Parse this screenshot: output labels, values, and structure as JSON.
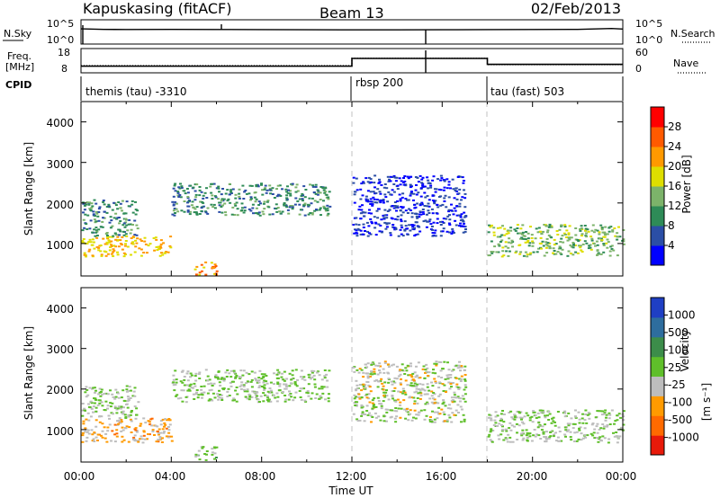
{
  "header": {
    "radar": "Kapuskasing (fitACF)",
    "beam": "Beam 13",
    "date": "02/Feb/2013"
  },
  "noise_panel": {
    "left_label": "N.Sky",
    "right_label": "N.Search",
    "left_ticks": [
      "10^5",
      "10^0"
    ],
    "right_ticks": [
      "10^5",
      "10^0"
    ]
  },
  "freq_panel": {
    "left_label_1": "Freq.",
    "left_label_2": "[MHz]",
    "right_label": "Nave",
    "left_ticks": [
      "18",
      "8"
    ],
    "right_ticks": [
      "60",
      "0"
    ]
  },
  "cpid_panel": {
    "label": "CPID",
    "segments": [
      {
        "name": "themis (tau) -3310",
        "start_hour": 0,
        "end_hour": 12
      },
      {
        "name": "rbsp 200",
        "start_hour": 12,
        "end_hour": 18
      },
      {
        "name": "tau (fast) 503",
        "start_hour": 18,
        "end_hour": 24
      }
    ]
  },
  "xaxis": {
    "label": "Time UT",
    "ticks": [
      "00:00",
      "04:00",
      "08:00",
      "12:00",
      "16:00",
      "20:00",
      "00:00"
    ]
  },
  "power_panel": {
    "ylabel": "Slant Range [km]",
    "yticks": [
      "4000",
      "3000",
      "2000",
      "1000"
    ],
    "colorbar_label": "Power [dB]",
    "colorbar_ticks": [
      "28",
      "24",
      "20",
      "16",
      "12",
      "8",
      "4"
    ],
    "colors": [
      "#0000ff",
      "#2b4ea6",
      "#2e8b57",
      "#7cb36a",
      "#dede00",
      "#ff9900",
      "#ff5a00",
      "#ff0000"
    ]
  },
  "velocity_panel": {
    "ylabel": "Slant Range [km]",
    "yticks": [
      "4000",
      "3000",
      "2000",
      "1000"
    ],
    "colorbar_label": "Velocity",
    "colorbar_unit": "[m s⁻¹]",
    "colorbar_ticks": [
      "1000",
      "500",
      "100",
      "25",
      "-25",
      "-100",
      "-500",
      "-1000"
    ],
    "colors": [
      "#1f3fc4",
      "#2e6d9e",
      "#3c8d4a",
      "#5fbf2a",
      "#bdbdbd",
      "#ff9a00",
      "#ff6a00",
      "#e81a0a"
    ]
  },
  "chart_data": [
    {
      "type": "line",
      "title": "N.Sky / N.Search",
      "x_units": "hours UT",
      "xlim": [
        0,
        24
      ],
      "y_scale": "log",
      "ylim": [
        1,
        100000
      ],
      "series": [
        {
          "name": "N.Sky",
          "x": [
            0,
            1,
            2,
            4,
            6,
            8,
            10,
            12,
            14,
            16,
            18,
            20,
            22,
            23.5,
            24
          ],
          "y": [
            2000,
            1500,
            1400,
            1500,
            1400,
            1300,
            1200,
            1100,
            1100,
            1200,
            1300,
            1400,
            1500,
            2500,
            1800
          ]
        },
        {
          "name": "N.Search",
          "x": [
            0,
            24
          ],
          "y": [
            1,
            1
          ]
        }
      ]
    },
    {
      "type": "line",
      "title": "Freq. / Nave",
      "x_units": "hours UT",
      "xlim": [
        0,
        24
      ],
      "ylim_left": [
        8,
        18
      ],
      "ylim_right": [
        0,
        60
      ],
      "series": [
        {
          "name": "Freq.",
          "x": [
            0,
            12,
            12,
            18,
            18,
            24
          ],
          "y": [
            10.2,
            10.2,
            14.5,
            14.5,
            11.2,
            11.2
          ]
        },
        {
          "name": "Nave",
          "x": [
            0,
            12,
            12,
            18,
            18,
            24
          ],
          "y": [
            15,
            15,
            40,
            40,
            18,
            18
          ]
        }
      ]
    },
    {
      "type": "heatmap",
      "title": "Power [dB]",
      "x_units": "hours UT",
      "y_units": "km",
      "xlim": [
        0,
        24
      ],
      "ylim": [
        200,
        4500
      ],
      "colorbar_range": [
        0,
        32
      ],
      "regions": [
        {
          "t0": 0.0,
          "t1": 4.0,
          "r0": 700,
          "r1": 1200,
          "value": 20
        },
        {
          "t0": 0.0,
          "t1": 2.5,
          "r0": 1200,
          "r1": 2100,
          "value": 10
        },
        {
          "t0": 4.0,
          "t1": 11.0,
          "r0": 1700,
          "r1": 2500,
          "value": 10
        },
        {
          "t0": 5.0,
          "t1": 6.0,
          "r0": 250,
          "r1": 600,
          "value": 22
        },
        {
          "t0": 18.0,
          "t1": 24.0,
          "r0": 700,
          "r1": 1500,
          "value": 14
        },
        {
          "t0": 12.0,
          "t1": 17.0,
          "r0": 1200,
          "r1": 2700,
          "value": 4
        }
      ]
    },
    {
      "type": "heatmap",
      "title": "Velocity [m s-1]",
      "x_units": "hours UT",
      "y_units": "km",
      "xlim": [
        0,
        24
      ],
      "ylim": [
        200,
        4500
      ],
      "colorbar_range": [
        -1000,
        1000
      ],
      "regions": [
        {
          "t0": 0.0,
          "t1": 4.0,
          "r0": 700,
          "r1": 1300,
          "value": -300
        },
        {
          "t0": 0.0,
          "t1": 2.5,
          "r0": 1300,
          "r1": 2100,
          "value": 0
        },
        {
          "t0": 4.0,
          "t1": 11.0,
          "r0": 1700,
          "r1": 2500,
          "value": 0
        },
        {
          "t0": 5.0,
          "t1": 6.0,
          "r0": 250,
          "r1": 600,
          "value": 80
        },
        {
          "t0": 18.0,
          "t1": 24.0,
          "r0": 700,
          "r1": 1500,
          "value": 0
        },
        {
          "t0": 12.0,
          "t1": 17.0,
          "r0": 1200,
          "r1": 2700,
          "value": -80
        }
      ]
    }
  ]
}
